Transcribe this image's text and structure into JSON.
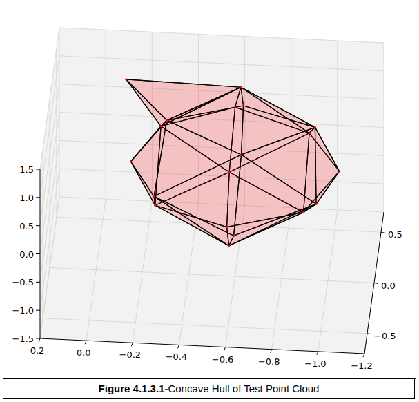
{
  "chart_data": {
    "type": "wireframe3d",
    "title": "Figure 4.1.3.1-Concave Hull of Test Point Cloud",
    "color": "#ff0000",
    "grid": true,
    "xlim": [
      0.2,
      -1.2
    ],
    "xticks": [
      0.2,
      {
        "value": 0.0,
        "label": "0.0"
      },
      {
        "value": -0.2,
        "label": "−0.2"
      },
      {
        "value": -0.4,
        "label": "−0.4"
      },
      {
        "value": -0.6,
        "label": "−0.6"
      },
      {
        "value": -0.8,
        "label": "−0.8"
      },
      {
        "value": -1.0,
        "label": "−1.0"
      },
      {
        "value": -1.2,
        "label": "−1.2"
      }
    ],
    "ylim": [
      -0.7,
      0.7
    ],
    "yticks": [
      {
        "value": -0.5,
        "label": "−0.5"
      },
      {
        "value": 0.0,
        "label": "0.0"
      },
      0.5
    ],
    "zlim": [
      -1.5,
      1.5
    ],
    "zticks": [
      {
        "value": -1.5,
        "label": "−1.5"
      },
      {
        "value": -1.0,
        "label": "−1.0"
      },
      {
        "value": -0.5,
        "label": "−0.5"
      },
      {
        "value": 0.0,
        "label": "0.0"
      },
      0.5,
      {
        "value": 1.0,
        "label": "1.0"
      },
      1.5
    ],
    "vertices": [
      [
        -0.6,
        0.0,
        1.5
      ],
      [
        -0.6,
        -0.1,
        -0.6
      ],
      [
        -0.15,
        0.0,
        0.45
      ],
      [
        -0.28,
        0.42,
        0.45
      ],
      [
        -0.6,
        0.6,
        0.45
      ],
      [
        -0.92,
        0.42,
        0.45
      ],
      [
        -1.05,
        0.0,
        0.45
      ],
      [
        -0.92,
        -0.42,
        0.45
      ],
      [
        -0.6,
        -0.6,
        0.45
      ],
      [
        -0.28,
        -0.42,
        0.45
      ],
      [
        -0.28,
        0.0,
        1.1
      ],
      [
        -0.6,
        0.42,
        1.1
      ],
      [
        -0.92,
        0.0,
        1.1
      ],
      [
        -0.6,
        -0.42,
        1.1
      ],
      [
        -0.25,
        0.0,
        -0.15
      ],
      [
        -0.6,
        0.45,
        -0.15
      ],
      [
        -0.95,
        0.0,
        -0.15
      ],
      [
        -0.6,
        -0.45,
        -0.15
      ],
      [
        -0.1,
        0.5,
        1.0
      ]
    ],
    "faces": [
      [
        0,
        10,
        11
      ],
      [
        0,
        11,
        12
      ],
      [
        0,
        12,
        13
      ],
      [
        0,
        13,
        10
      ],
      [
        10,
        2,
        3
      ],
      [
        10,
        3,
        11
      ],
      [
        11,
        3,
        4
      ],
      [
        11,
        4,
        5
      ],
      [
        11,
        5,
        12
      ],
      [
        12,
        5,
        6
      ],
      [
        12,
        6,
        7
      ],
      [
        12,
        7,
        13
      ],
      [
        13,
        7,
        8
      ],
      [
        13,
        8,
        9
      ],
      [
        13,
        9,
        10
      ],
      [
        10,
        9,
        2
      ],
      [
        14,
        2,
        3
      ],
      [
        14,
        3,
        15
      ],
      [
        15,
        3,
        4
      ],
      [
        15,
        4,
        5
      ],
      [
        15,
        5,
        16
      ],
      [
        16,
        5,
        6
      ],
      [
        16,
        6,
        7
      ],
      [
        16,
        7,
        17
      ],
      [
        17,
        7,
        8
      ],
      [
        17,
        8,
        9
      ],
      [
        17,
        9,
        14
      ],
      [
        14,
        9,
        2
      ],
      [
        1,
        14,
        15
      ],
      [
        1,
        15,
        16
      ],
      [
        1,
        16,
        17
      ],
      [
        1,
        17,
        14
      ],
      [
        18,
        10,
        11
      ],
      [
        18,
        11,
        3
      ],
      [
        18,
        3,
        10
      ]
    ]
  }
}
